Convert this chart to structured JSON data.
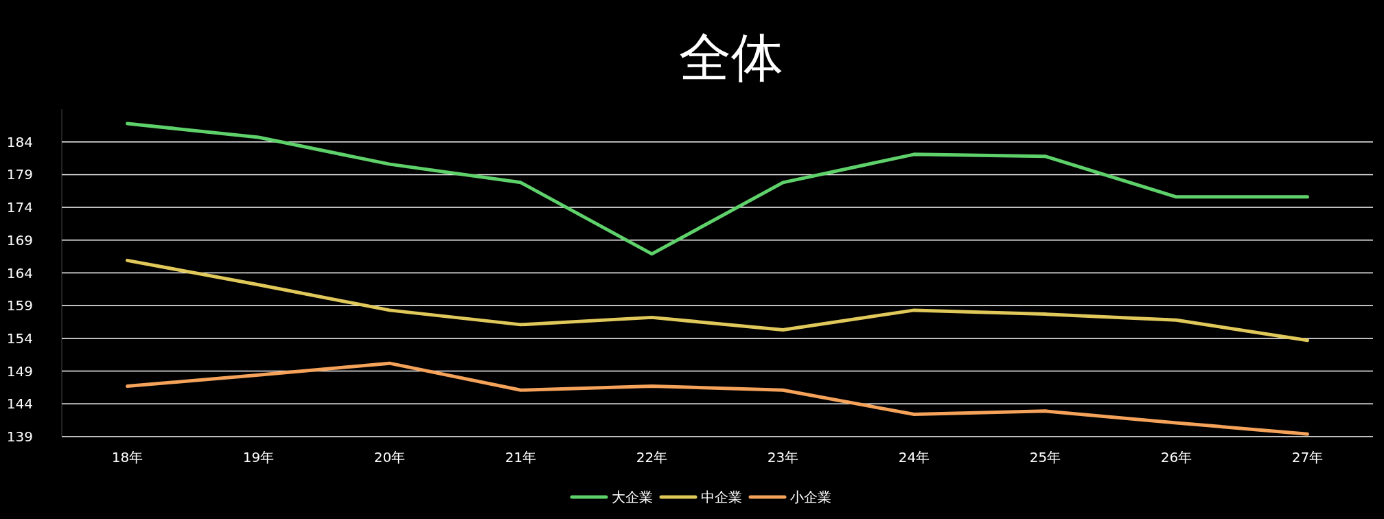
{
  "chart_data": {
    "type": "line",
    "title": "全体",
    "categories": [
      "18年",
      "19年",
      "20年",
      "21年",
      "22年",
      "23年",
      "24年",
      "25年",
      "26年",
      "27年"
    ],
    "series": [
      {
        "name": "大企業",
        "color": "#5fd16b",
        "values": [
          186.8,
          184.7,
          180.6,
          177.8,
          166.9,
          177.8,
          182.1,
          181.8,
          175.6,
          175.6
        ]
      },
      {
        "name": "中企業",
        "color": "#e0c95a",
        "values": [
          165.9,
          162.2,
          158.3,
          156.1,
          157.2,
          155.3,
          158.3,
          157.7,
          156.8,
          153.7
        ]
      },
      {
        "name": "小企業",
        "color": "#f5a25a",
        "values": [
          146.7,
          148.4,
          150.2,
          146.1,
          146.7,
          146.1,
          142.4,
          142.9,
          141.1,
          139.4
        ]
      }
    ],
    "ylim": [
      139,
      189
    ],
    "yticks": [
      139,
      144,
      149,
      154,
      159,
      164,
      169,
      174,
      179,
      184
    ],
    "grid": "y",
    "legend": "bottom",
    "marker": "none",
    "line_style": "solid"
  }
}
